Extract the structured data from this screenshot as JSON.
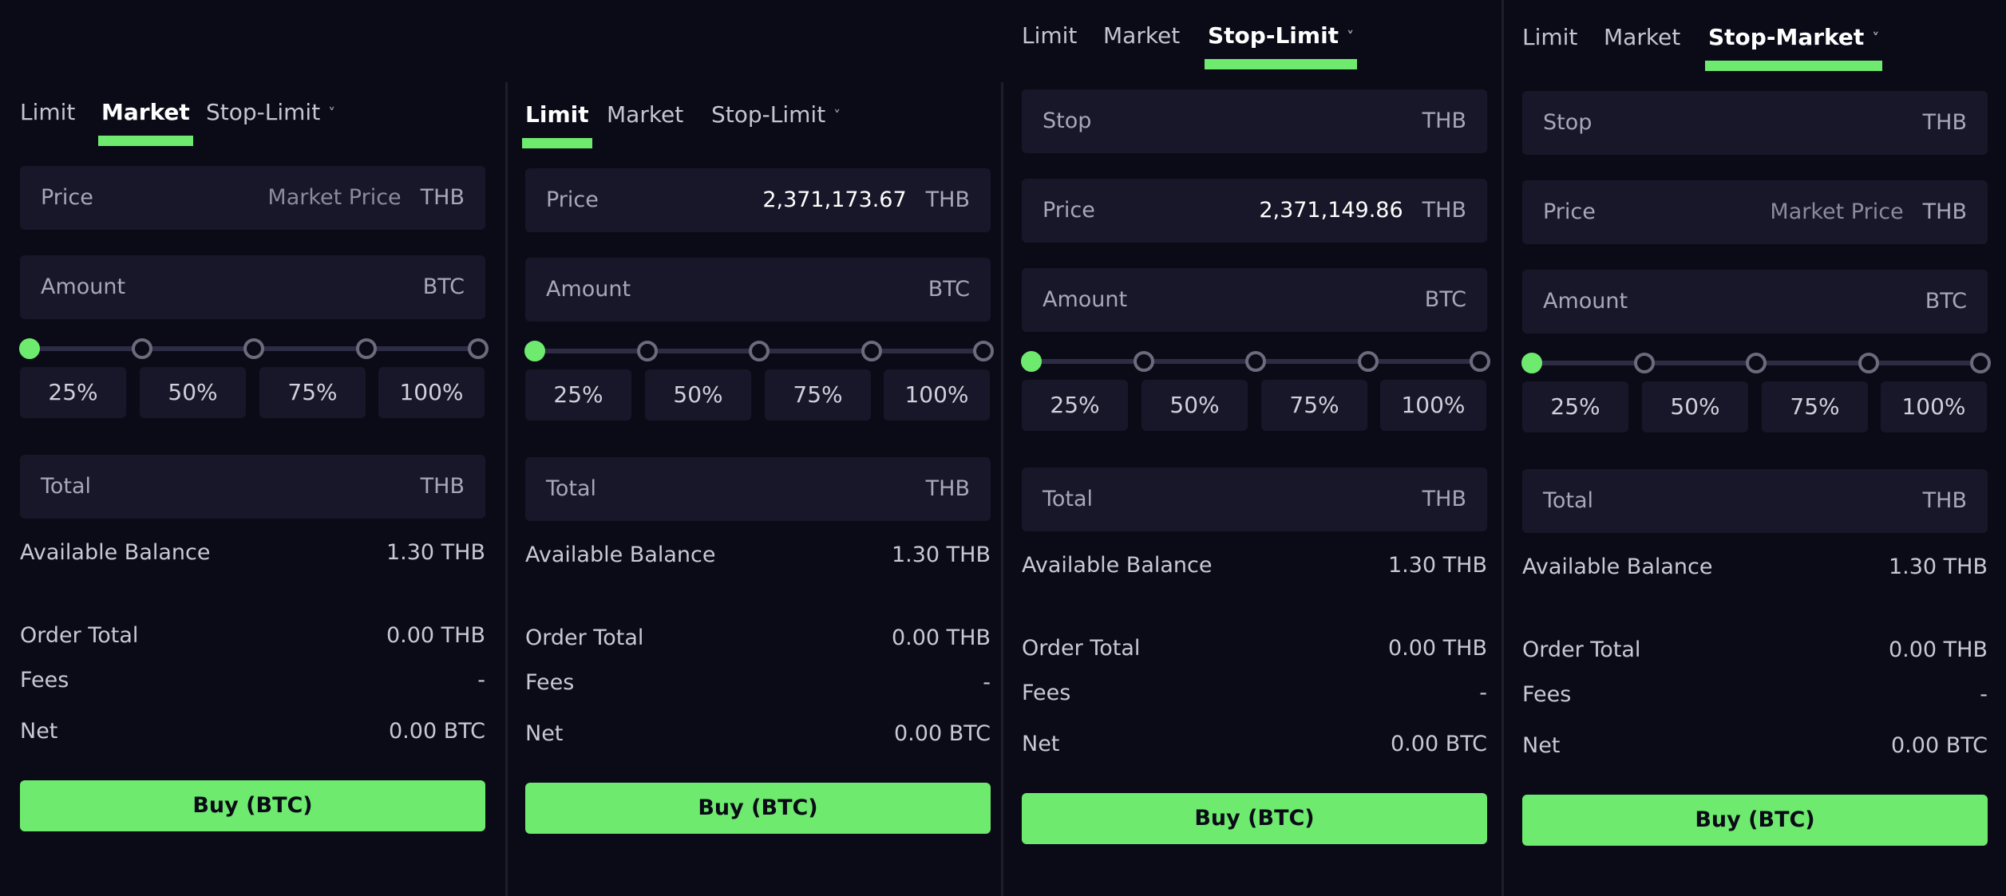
{
  "colors": {
    "background": "#0b0b18",
    "field": "#171729",
    "accent": "#6eea6f",
    "text": "#c9c9d6"
  },
  "panels": [
    {
      "tabs": [
        {
          "label": "Limit"
        },
        {
          "label": "Market"
        },
        {
          "label": "Stop-Limit"
        }
      ],
      "active_tab": "Market",
      "dropdown_icon": "chevron-down-icon",
      "stop": null,
      "price": {
        "label": "Price",
        "value": "Market Price",
        "unit": "THB"
      },
      "amount": {
        "label": "Amount",
        "value": "",
        "unit": "BTC"
      },
      "slider": {
        "level": 0
      },
      "percents": [
        "25%",
        "50%",
        "75%",
        "100%"
      ],
      "total": {
        "label": "Total",
        "unit": "THB"
      },
      "available": {
        "label": "Available Balance",
        "value": "1.30 THB"
      },
      "order_total": {
        "label": "Order Total",
        "value": "0.00 THB"
      },
      "fees": {
        "label": "Fees",
        "value": "-"
      },
      "net": {
        "label": "Net",
        "value": "0.00 BTC"
      },
      "buy_label": "Buy (BTC)"
    },
    {
      "tabs": [
        {
          "label": "Limit"
        },
        {
          "label": "Market"
        },
        {
          "label": "Stop-Limit"
        }
      ],
      "active_tab": "Limit",
      "dropdown_icon": "chevron-down-icon",
      "stop": null,
      "price": {
        "label": "Price",
        "value": "2,371,173.67",
        "unit": "THB"
      },
      "amount": {
        "label": "Amount",
        "value": "",
        "unit": "BTC"
      },
      "slider": {
        "level": 0
      },
      "percents": [
        "25%",
        "50%",
        "75%",
        "100%"
      ],
      "total": {
        "label": "Total",
        "unit": "THB"
      },
      "available": {
        "label": "Available Balance",
        "value": "1.30 THB"
      },
      "order_total": {
        "label": "Order Total",
        "value": "0.00 THB"
      },
      "fees": {
        "label": "Fees",
        "value": "-"
      },
      "net": {
        "label": "Net",
        "value": "0.00 BTC"
      },
      "buy_label": "Buy (BTC)"
    },
    {
      "tabs": [
        {
          "label": "Limit"
        },
        {
          "label": "Market"
        },
        {
          "label": "Stop-Limit"
        }
      ],
      "active_tab": "Stop-Limit",
      "dropdown_icon": "chevron-down-icon",
      "stop": {
        "label": "Stop",
        "unit": "THB"
      },
      "price": {
        "label": "Price",
        "value": "2,371,149.86",
        "unit": "THB"
      },
      "amount": {
        "label": "Amount",
        "value": "",
        "unit": "BTC"
      },
      "slider": {
        "level": 0
      },
      "percents": [
        "25%",
        "50%",
        "75%",
        "100%"
      ],
      "total": {
        "label": "Total",
        "unit": "THB"
      },
      "available": {
        "label": "Available Balance",
        "value": "1.30 THB"
      },
      "order_total": {
        "label": "Order Total",
        "value": "0.00 THB"
      },
      "fees": {
        "label": "Fees",
        "value": "-"
      },
      "net": {
        "label": "Net",
        "value": "0.00 BTC"
      },
      "buy_label": "Buy (BTC)"
    },
    {
      "tabs": [
        {
          "label": "Limit"
        },
        {
          "label": "Market"
        },
        {
          "label": "Stop-Market"
        }
      ],
      "active_tab": "Stop-Market",
      "dropdown_icon": "chevron-down-icon",
      "stop": {
        "label": "Stop",
        "unit": "THB"
      },
      "price": {
        "label": "Price",
        "value": "Market Price",
        "unit": "THB"
      },
      "amount": {
        "label": "Amount",
        "value": "",
        "unit": "BTC"
      },
      "slider": {
        "level": 0
      },
      "percents": [
        "25%",
        "50%",
        "75%",
        "100%"
      ],
      "total": {
        "label": "Total",
        "unit": "THB"
      },
      "available": {
        "label": "Available Balance",
        "value": "1.30 THB"
      },
      "order_total": {
        "label": "Order Total",
        "value": "0.00 THB"
      },
      "fees": {
        "label": "Fees",
        "value": "-"
      },
      "net": {
        "label": "Net",
        "value": "0.00 BTC"
      },
      "buy_label": "Buy (BTC)"
    }
  ]
}
